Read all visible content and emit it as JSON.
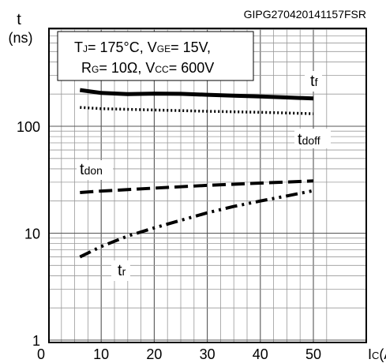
{
  "figure_code": "GIPG270420141157FSR",
  "conditions": {
    "line1": [
      "T",
      "J",
      "= 175°C, V",
      "GE",
      "= 15V,"
    ],
    "line2": [
      "R",
      "G",
      "= 10Ω, V",
      "CC",
      "= 600V"
    ]
  },
  "chart_data": {
    "type": "line",
    "title": "",
    "ylabel": [
      "t",
      "(ns)"
    ],
    "xlabel": [
      "I",
      "C",
      "(A)"
    ],
    "y_scale": "log",
    "xlim": [
      0,
      55
    ],
    "ylim": [
      1,
      1000
    ],
    "x_ticks": [
      0,
      10,
      20,
      30,
      40,
      50
    ],
    "y_ticks": [
      1,
      10,
      100
    ],
    "grid": true,
    "series": [
      {
        "name": "tf",
        "label_main": "t",
        "label_sub": "f",
        "style": "solid",
        "x": [
          6,
          10,
          15,
          20,
          25,
          30,
          35,
          40,
          45,
          50
        ],
        "y": [
          218,
          205,
          200,
          202,
          201,
          197,
          193,
          190,
          186,
          182
        ]
      },
      {
        "name": "tdoff",
        "label_main": "t",
        "label_sub": "doff",
        "style": "dotted",
        "x": [
          6,
          10,
          20,
          30,
          40,
          50
        ],
        "y": [
          150,
          146,
          142,
          138,
          135,
          131
        ]
      },
      {
        "name": "tdon",
        "label_main": "t",
        "label_sub": "don",
        "style": "dashed",
        "x": [
          6,
          10,
          20,
          30,
          40,
          50
        ],
        "y": [
          24,
          24.8,
          26.4,
          28,
          29.4,
          30.8
        ]
      },
      {
        "name": "tr",
        "label_main": "t",
        "label_sub": "r",
        "style": "dashdotdot",
        "x": [
          6,
          10,
          15,
          20,
          25,
          30,
          35,
          40,
          45,
          50
        ],
        "y": [
          6,
          7.5,
          9.4,
          11.2,
          13.2,
          15.5,
          17.8,
          20,
          22.3,
          25
        ]
      }
    ]
  }
}
